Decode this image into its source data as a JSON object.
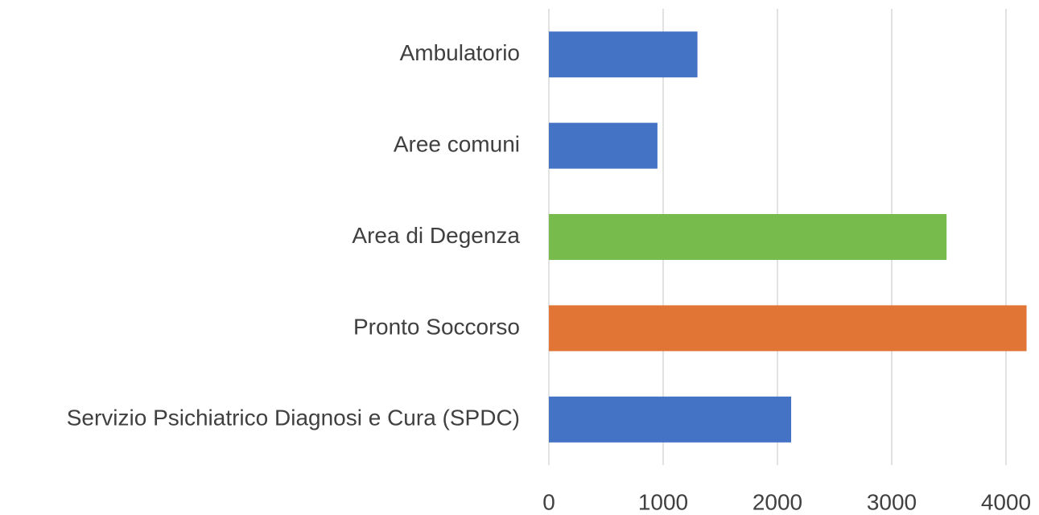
{
  "chart_data": {
    "type": "barh",
    "categories": [
      "Ambulatorio",
      "Aree comuni",
      "Area di Degenza",
      "Pronto Soccorso",
      "Servizio Psichiatrico Diagnosi e Cura (SPDC)"
    ],
    "values": [
      1300,
      950,
      3480,
      4180,
      2120
    ],
    "colors": [
      "#4472c4",
      "#4472c4",
      "#77bb4c",
      "#e07535",
      "#4472c4"
    ],
    "xlim": [
      0,
      4200
    ],
    "xticks": [
      0,
      1000,
      2000,
      3000,
      4000
    ],
    "grid": true
  }
}
